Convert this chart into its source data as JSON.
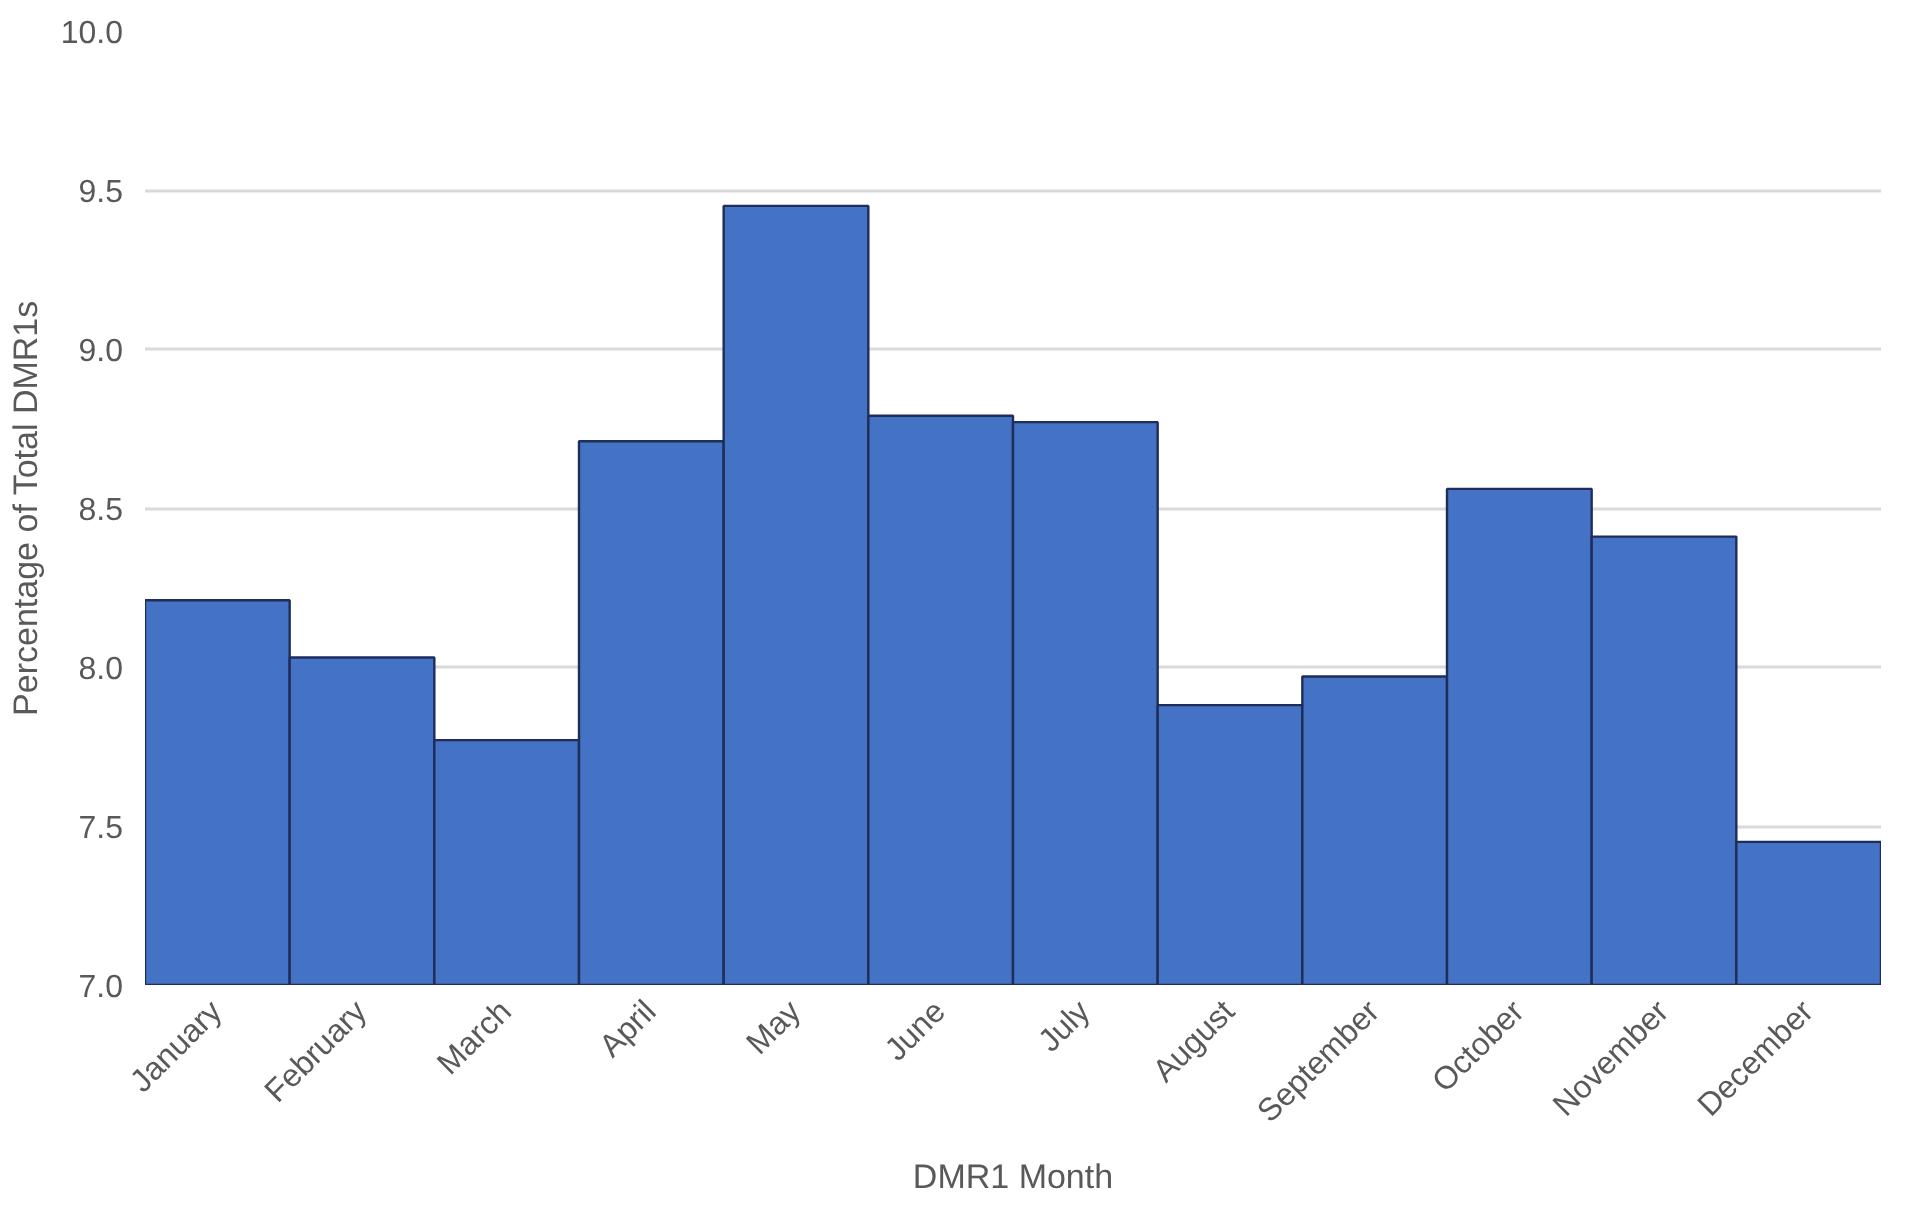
{
  "chart_data": {
    "type": "bar",
    "xlabel": "DMR1 Month",
    "ylabel": "Percentage of Total DMR1s",
    "categories": [
      "January",
      "February",
      "March",
      "April",
      "May",
      "June",
      "July",
      "August",
      "September",
      "October",
      "November",
      "December"
    ],
    "values": [
      8.21,
      8.03,
      7.77,
      8.71,
      9.45,
      8.79,
      8.77,
      7.88,
      7.97,
      8.56,
      8.41,
      7.45
    ],
    "color": "#4472c4",
    "ylim": [
      7.0,
      10.0
    ],
    "yticks": [
      {
        "value": 7.0,
        "label": "7.0"
      },
      {
        "value": 7.5,
        "label": "7.5"
      },
      {
        "value": 8.0,
        "label": "8.0"
      },
      {
        "value": 8.5,
        "label": "8.5"
      },
      {
        "value": 9.0,
        "label": "9.0"
      },
      {
        "value": 9.5,
        "label": "9.5"
      },
      {
        "value": 10.0,
        "label": "10.0"
      }
    ],
    "grid": "y"
  }
}
